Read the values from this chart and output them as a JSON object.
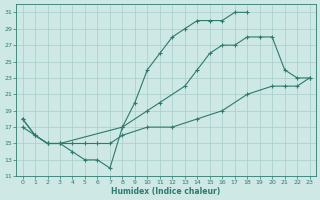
{
  "xlabel": "Humidex (Indice chaleur)",
  "xlim": [
    -0.5,
    23.5
  ],
  "ylim": [
    11,
    32
  ],
  "yticks": [
    11,
    13,
    15,
    17,
    19,
    21,
    23,
    25,
    27,
    29,
    31
  ],
  "xticks": [
    0,
    1,
    2,
    3,
    4,
    5,
    6,
    7,
    8,
    9,
    10,
    11,
    12,
    13,
    14,
    15,
    16,
    17,
    18,
    19,
    20,
    21,
    22,
    23
  ],
  "background_color": "#cde8e5",
  "grid_color": "#a8ceca",
  "line_color": "#2d7a6e",
  "line1_x": [
    0,
    1,
    2,
    3,
    4,
    5,
    6,
    7,
    8,
    9,
    10,
    11,
    12,
    13,
    14,
    15,
    16,
    17,
    18
  ],
  "line1_y": [
    18,
    16,
    15,
    15,
    14,
    13,
    13,
    12,
    17,
    20,
    24,
    26,
    28,
    29,
    30,
    30,
    30,
    31,
    31
  ],
  "line2_x": [
    0,
    1,
    2,
    3,
    8,
    10,
    11,
    13,
    14,
    15,
    16,
    17,
    18,
    19,
    20,
    21,
    22,
    23
  ],
  "line2_y": [
    18,
    16,
    15,
    15,
    17,
    19,
    20,
    22,
    24,
    26,
    27,
    27,
    28,
    28,
    28,
    24,
    23,
    23
  ],
  "line3_x": [
    0,
    1,
    2,
    3,
    4,
    5,
    6,
    7,
    8,
    10,
    12,
    14,
    16,
    18,
    20,
    21,
    22,
    23
  ],
  "line3_y": [
    17,
    16,
    15,
    15,
    15,
    15,
    15,
    15,
    16,
    17,
    17,
    18,
    19,
    21,
    22,
    22,
    22,
    23
  ]
}
